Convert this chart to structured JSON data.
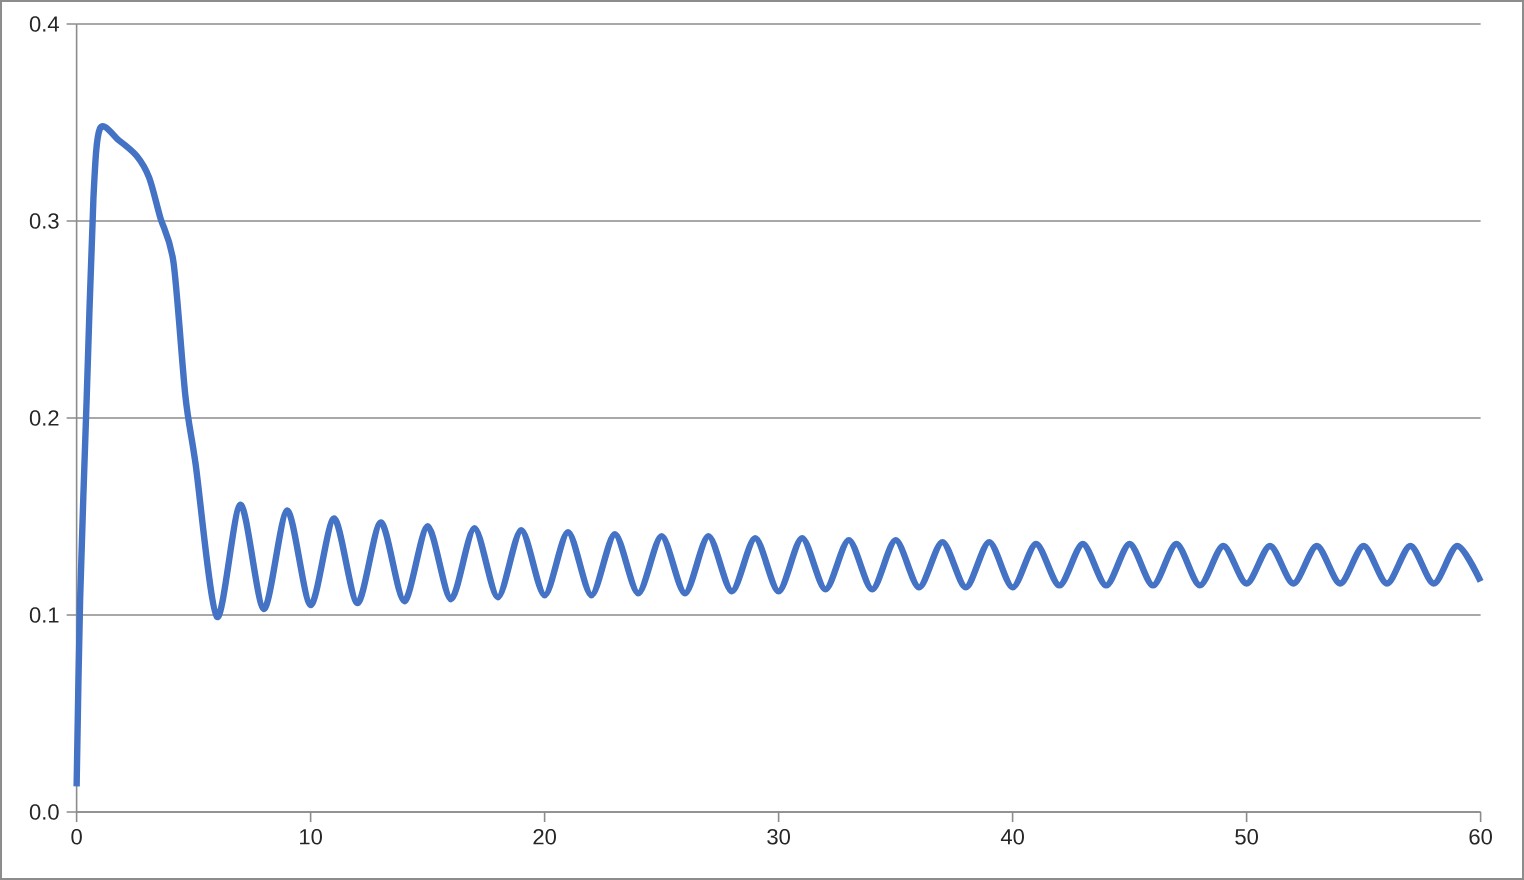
{
  "chart_data": {
    "type": "line",
    "color": "#4472c4",
    "grid": "y",
    "x": [
      0,
      0.15,
      0.43,
      0.72,
      1.0,
      1.8,
      2.57,
      3.1,
      3.57,
      4.14,
      4.65,
      5.08,
      6,
      7,
      8,
      9,
      10,
      11,
      12,
      13,
      14,
      15,
      16,
      17,
      18,
      19,
      20,
      21,
      22,
      23,
      24,
      25,
      26,
      27,
      28,
      29,
      30,
      31,
      32,
      33,
      34,
      35,
      36,
      37,
      38,
      39,
      40,
      41,
      42,
      43,
      44,
      45,
      46,
      47,
      48,
      49,
      50,
      51,
      52,
      53,
      54,
      55,
      56,
      57,
      58,
      59,
      60
    ],
    "values": [
      0.013,
      0.108,
      0.21,
      0.312,
      0.347,
      0.341,
      0.333,
      0.322,
      0.302,
      0.279,
      0.211,
      0.177,
      0.099,
      0.156,
      0.103,
      0.153,
      0.105,
      0.149,
      0.106,
      0.147,
      0.107,
      0.145,
      0.108,
      0.144,
      0.109,
      0.143,
      0.11,
      0.142,
      0.11,
      0.141,
      0.111,
      0.14,
      0.111,
      0.14,
      0.112,
      0.139,
      0.112,
      0.139,
      0.113,
      0.138,
      0.113,
      0.138,
      0.114,
      0.137,
      0.114,
      0.137,
      0.114,
      0.136,
      0.115,
      0.136,
      0.115,
      0.136,
      0.115,
      0.136,
      0.115,
      0.135,
      0.116,
      0.135,
      0.116,
      0.135,
      0.116,
      0.135,
      0.116,
      0.135,
      0.116,
      0.135,
      0.117
    ],
    "xlim": [
      0,
      60
    ],
    "ylim": [
      0,
      0.4
    ],
    "xticks": [
      0,
      10,
      20,
      30,
      40,
      50,
      60
    ],
    "yticks": [
      {
        "value": 0,
        "label": "0.0"
      },
      {
        "value": 0.1,
        "label": "0.1"
      },
      {
        "value": 0.2,
        "label": "0.2"
      },
      {
        "value": 0.3,
        "label": "0.3"
      },
      {
        "value": 0.4,
        "label": "0.4"
      }
    ]
  }
}
